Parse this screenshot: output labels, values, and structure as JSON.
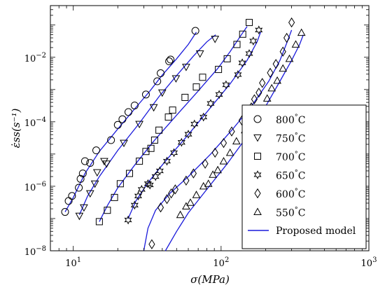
{
  "chart_data": {
    "type": "scatter",
    "xlabel": "σ(MPa)",
    "ylabel": "ε̇ss(s⁻¹)",
    "x_scale": "log",
    "y_scale": "log",
    "xlim": [
      7,
      1000
    ],
    "ylim": [
      1e-08,
      0.4
    ],
    "x_ticks": [
      {
        "value": 10,
        "base": "10",
        "exp": "1"
      },
      {
        "value": 100,
        "base": "10",
        "exp": "2"
      },
      {
        "value": 1000,
        "base": "10",
        "exp": "3"
      }
    ],
    "y_ticks": [
      {
        "value": 1e-08,
        "base": "10",
        "exp": "−8"
      },
      {
        "value": 1e-06,
        "base": "10",
        "exp": "−6"
      },
      {
        "value": 0.0001,
        "base": "10",
        "exp": "−4"
      },
      {
        "value": 0.01,
        "base": "10",
        "exp": "−2"
      }
    ],
    "grid": false,
    "legend_position": "bottom-right",
    "colors": {
      "model": "#1a1adb",
      "markers": "#000000"
    },
    "series": [
      {
        "name": "800°C",
        "label_value": "800",
        "label_unit": "°C",
        "marker": "circle",
        "points": [
          [
            8.8,
            1.6e-07
          ],
          [
            9.3,
            3.5e-07
          ],
          [
            9.8,
            5e-07
          ],
          [
            10.9,
            9e-07
          ],
          [
            11.2,
            1.7e-06
          ],
          [
            11.6,
            2.5e-06
          ],
          [
            12.0,
            6e-06
          ],
          [
            13.0,
            5.3e-06
          ],
          [
            14.3,
            1.3e-05
          ],
          [
            18.0,
            2.7e-05
          ],
          [
            20.0,
            8e-05
          ],
          [
            21.5,
            0.00012
          ],
          [
            23.6,
            0.0002
          ],
          [
            26.0,
            0.00032
          ],
          [
            31.0,
            0.0007
          ],
          [
            37.0,
            0.0018
          ],
          [
            39.0,
            0.0032
          ],
          [
            44.5,
            0.0075
          ],
          [
            45.5,
            0.0085
          ],
          [
            67.0,
            0.066
          ]
        ]
      },
      {
        "name": "750°C",
        "label_value": "750",
        "label_unit": "°C",
        "marker": "triangle-down",
        "points": [
          [
            11.0,
            1.2e-07
          ],
          [
            11.8,
            2.2e-07
          ],
          [
            13.0,
            6e-07
          ],
          [
            14.0,
            1.2e-06
          ],
          [
            14.5,
            2.7e-06
          ],
          [
            16.2,
            6e-06
          ],
          [
            16.8,
            5e-06
          ],
          [
            22.0,
            2.2e-05
          ],
          [
            28.0,
            8.5e-05
          ],
          [
            35.0,
            0.00028
          ],
          [
            40.0,
            0.0008
          ],
          [
            49.5,
            0.0022
          ],
          [
            58.0,
            0.005
          ],
          [
            72.0,
            0.013
          ],
          [
            91.0,
            0.037
          ]
        ]
      },
      {
        "name": "700°C",
        "label_value": "700",
        "label_unit": "°C",
        "marker": "square",
        "points": [
          [
            15.0,
            8e-08
          ],
          [
            17.0,
            1.8e-07
          ],
          [
            19.0,
            4.5e-07
          ],
          [
            20.8,
            1.2e-06
          ],
          [
            24.0,
            2.5e-06
          ],
          [
            28.0,
            6e-06
          ],
          [
            31.0,
            1.2e-05
          ],
          [
            33.5,
            1.5e-05
          ],
          [
            35.5,
            2.7e-05
          ],
          [
            38.0,
            5.5e-05
          ],
          [
            44.0,
            0.00014
          ],
          [
            47.0,
            0.00023
          ],
          [
            57.0,
            0.00057
          ],
          [
            68.0,
            0.0012
          ],
          [
            75.0,
            0.0024
          ],
          [
            96.0,
            0.0042
          ],
          [
            110.0,
            0.009
          ],
          [
            128.0,
            0.025
          ],
          [
            140.0,
            0.052
          ],
          [
            155.0,
            0.12
          ]
        ]
      },
      {
        "name": "650°C",
        "label_value": "650",
        "label_unit": "°C",
        "marker": "star",
        "points": [
          [
            23.5,
            9e-08
          ],
          [
            26.0,
            2.6e-07
          ],
          [
            27.5,
            5e-07
          ],
          [
            29.0,
            8e-07
          ],
          [
            32.0,
            1.2e-06
          ],
          [
            33.0,
            1.1e-06
          ],
          [
            36.0,
            2e-06
          ],
          [
            38.5,
            3e-06
          ],
          [
            43.0,
            6e-06
          ],
          [
            48.0,
            1.1e-05
          ],
          [
            54.0,
            2.3e-05
          ],
          [
            60.0,
            4.1e-05
          ],
          [
            66.0,
            8.5e-05
          ],
          [
            76.0,
            0.00014
          ],
          [
            85.0,
            0.00037
          ],
          [
            97.0,
            0.0007
          ],
          [
            108.0,
            0.0014
          ],
          [
            130.0,
            0.0029
          ],
          [
            139.0,
            0.0067
          ],
          [
            155.0,
            0.013
          ],
          [
            165.0,
            0.032
          ],
          [
            180.0,
            0.07
          ]
        ]
      },
      {
        "name": "600°C",
        "label_value": "600",
        "label_unit": "°C",
        "marker": "diamond",
        "points": [
          [
            34.0,
            1.6e-08
          ],
          [
            39.0,
            2.2e-07
          ],
          [
            43.0,
            4e-07
          ],
          [
            46.0,
            6e-07
          ],
          [
            49.0,
            8e-07
          ],
          [
            58.0,
            1.5e-06
          ],
          [
            65.0,
            2.5e-06
          ],
          [
            78.0,
            5e-06
          ],
          [
            91.0,
            1.1e-05
          ],
          [
            104.0,
            2.2e-05
          ],
          [
            118.0,
            5e-05
          ],
          [
            138.0,
            0.00011
          ],
          [
            160.0,
            0.00028
          ],
          [
            168.0,
            0.0005
          ],
          [
            180.0,
            0.0008
          ],
          [
            190.0,
            0.0016
          ],
          [
            215.0,
            0.0033
          ],
          [
            235.0,
            0.0062
          ],
          [
            262.0,
            0.015
          ],
          [
            278.0,
            0.04
          ],
          [
            300.0,
            0.12
          ]
        ]
      },
      {
        "name": "550°C",
        "label_value": "550",
        "label_unit": "°C",
        "marker": "triangle-up",
        "points": [
          [
            53.0,
            1.3e-07
          ],
          [
            58.0,
            2.4e-07
          ],
          [
            62.0,
            3.1e-07
          ],
          [
            68.0,
            5.4e-07
          ],
          [
            76.0,
            1e-06
          ],
          [
            82.0,
            1.2e-06
          ],
          [
            88.0,
            2.3e-06
          ],
          [
            95.0,
            3.2e-06
          ],
          [
            104.0,
            6e-06
          ],
          [
            115.0,
            1.1e-05
          ],
          [
            127.0,
            2.5e-05
          ],
          [
            145.0,
            5.5e-05
          ],
          [
            168.0,
            0.00012
          ],
          [
            190.0,
            0.00025
          ],
          [
            205.0,
            0.00053
          ],
          [
            220.0,
            0.0011
          ],
          [
            240.0,
            0.0019
          ],
          [
            262.0,
            0.0045
          ],
          [
            290.0,
            0.009
          ],
          [
            320.0,
            0.025
          ],
          [
            350.0,
            0.058
          ]
        ]
      }
    ],
    "model": {
      "name": "Proposed model",
      "curves": [
        [
          [
            8.8,
            1.6e-07
          ],
          [
            10.0,
            4.5e-07
          ],
          [
            12.0,
            2.5e-06
          ],
          [
            15.0,
            1.2e-05
          ],
          [
            20.0,
            6e-05
          ],
          [
            26.0,
            0.00025
          ],
          [
            33.0,
            0.0009
          ],
          [
            40.0,
            0.0028
          ],
          [
            50.0,
            0.009
          ],
          [
            60.0,
            0.025
          ],
          [
            68.0,
            0.06
          ]
        ],
        [
          [
            11.0,
            1.3e-07
          ],
          [
            12.5,
            5e-07
          ],
          [
            15.0,
            2e-06
          ],
          [
            20.0,
            1.3e-05
          ],
          [
            28.0,
            9e-05
          ],
          [
            38.0,
            0.0006
          ],
          [
            50.0,
            0.0027
          ],
          [
            65.0,
            0.011
          ],
          [
            80.0,
            0.03
          ],
          [
            92.0,
            0.05
          ]
        ],
        [
          [
            15.0,
            8e-08
          ],
          [
            17.0,
            2.5e-07
          ],
          [
            20.0,
            9e-07
          ],
          [
            26.0,
            4.5e-06
          ],
          [
            35.0,
            2.5e-05
          ],
          [
            50.0,
            0.00016
          ],
          [
            70.0,
            0.0009
          ],
          [
            95.0,
            0.0045
          ],
          [
            115.0,
            0.015
          ],
          [
            135.0,
            0.045
          ],
          [
            150.0,
            0.09
          ]
        ],
        [
          [
            23.5,
            1e-07
          ],
          [
            26.5,
            3.5e-07
          ],
          [
            32.0,
            1.3e-06
          ],
          [
            42.0,
            6e-06
          ],
          [
            60.0,
            4e-05
          ],
          [
            85.0,
            0.00028
          ],
          [
            115.0,
            0.0015
          ],
          [
            150.0,
            0.008
          ],
          [
            175.0,
            0.03
          ],
          [
            185.0,
            0.06
          ]
        ],
        [
          [
            30.0,
            1e-08
          ],
          [
            32.0,
            5e-08
          ],
          [
            36.0,
            1.8e-07
          ],
          [
            45.0,
            6e-07
          ],
          [
            60.0,
            2e-06
          ],
          [
            85.0,
            1e-05
          ],
          [
            120.0,
            6e-05
          ],
          [
            160.0,
            0.0003
          ],
          [
            210.0,
            0.0018
          ],
          [
            250.0,
            0.008
          ],
          [
            280.0,
            0.03
          ],
          [
            300.0,
            0.07
          ]
        ],
        [
          [
            42.0,
            1e-08
          ],
          [
            50.0,
            4e-08
          ],
          [
            60.0,
            1.5e-07
          ],
          [
            80.0,
            8e-07
          ],
          [
            110.0,
            5e-06
          ],
          [
            150.0,
            3.5e-05
          ],
          [
            200.0,
            0.0003
          ],
          [
            250.0,
            0.0018
          ],
          [
            300.0,
            0.008
          ],
          [
            340.0,
            0.025
          ],
          [
            360.0,
            0.05
          ]
        ]
      ]
    }
  }
}
